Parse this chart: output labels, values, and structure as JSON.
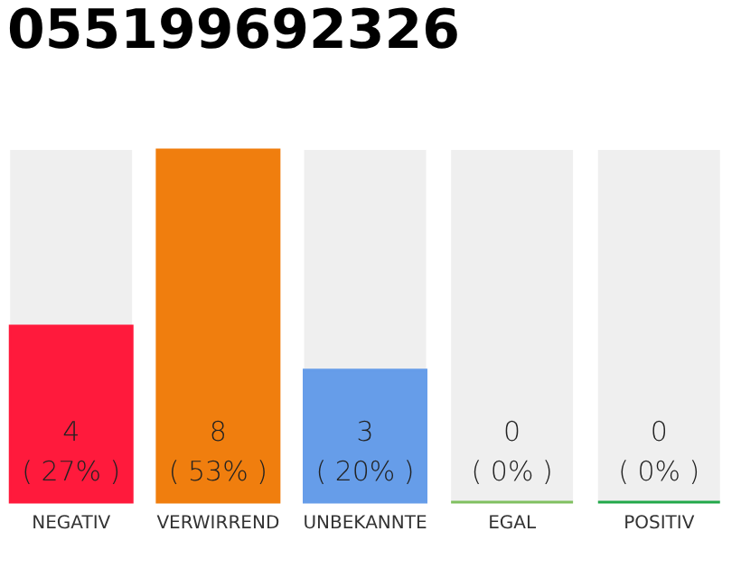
{
  "chart_data": {
    "type": "bar",
    "title": "055199692326",
    "categories": [
      "NEGATIV",
      "VERWIRREND",
      "UNBEKANNTE",
      "EGAL",
      "POSITIV"
    ],
    "values": [
      4,
      8,
      3,
      0,
      0
    ],
    "colors": [
      "#ff1a3c",
      "#f07e0e",
      "#669de9",
      "#80c060",
      "#22a84a"
    ],
    "value_labels": [
      "4\n( 27% )",
      "8\n( 53% )",
      "3\n( 20% )",
      "0\n( 0% )",
      "0\n( 0% )"
    ],
    "tick_labels": "x",
    "grid": false
  }
}
